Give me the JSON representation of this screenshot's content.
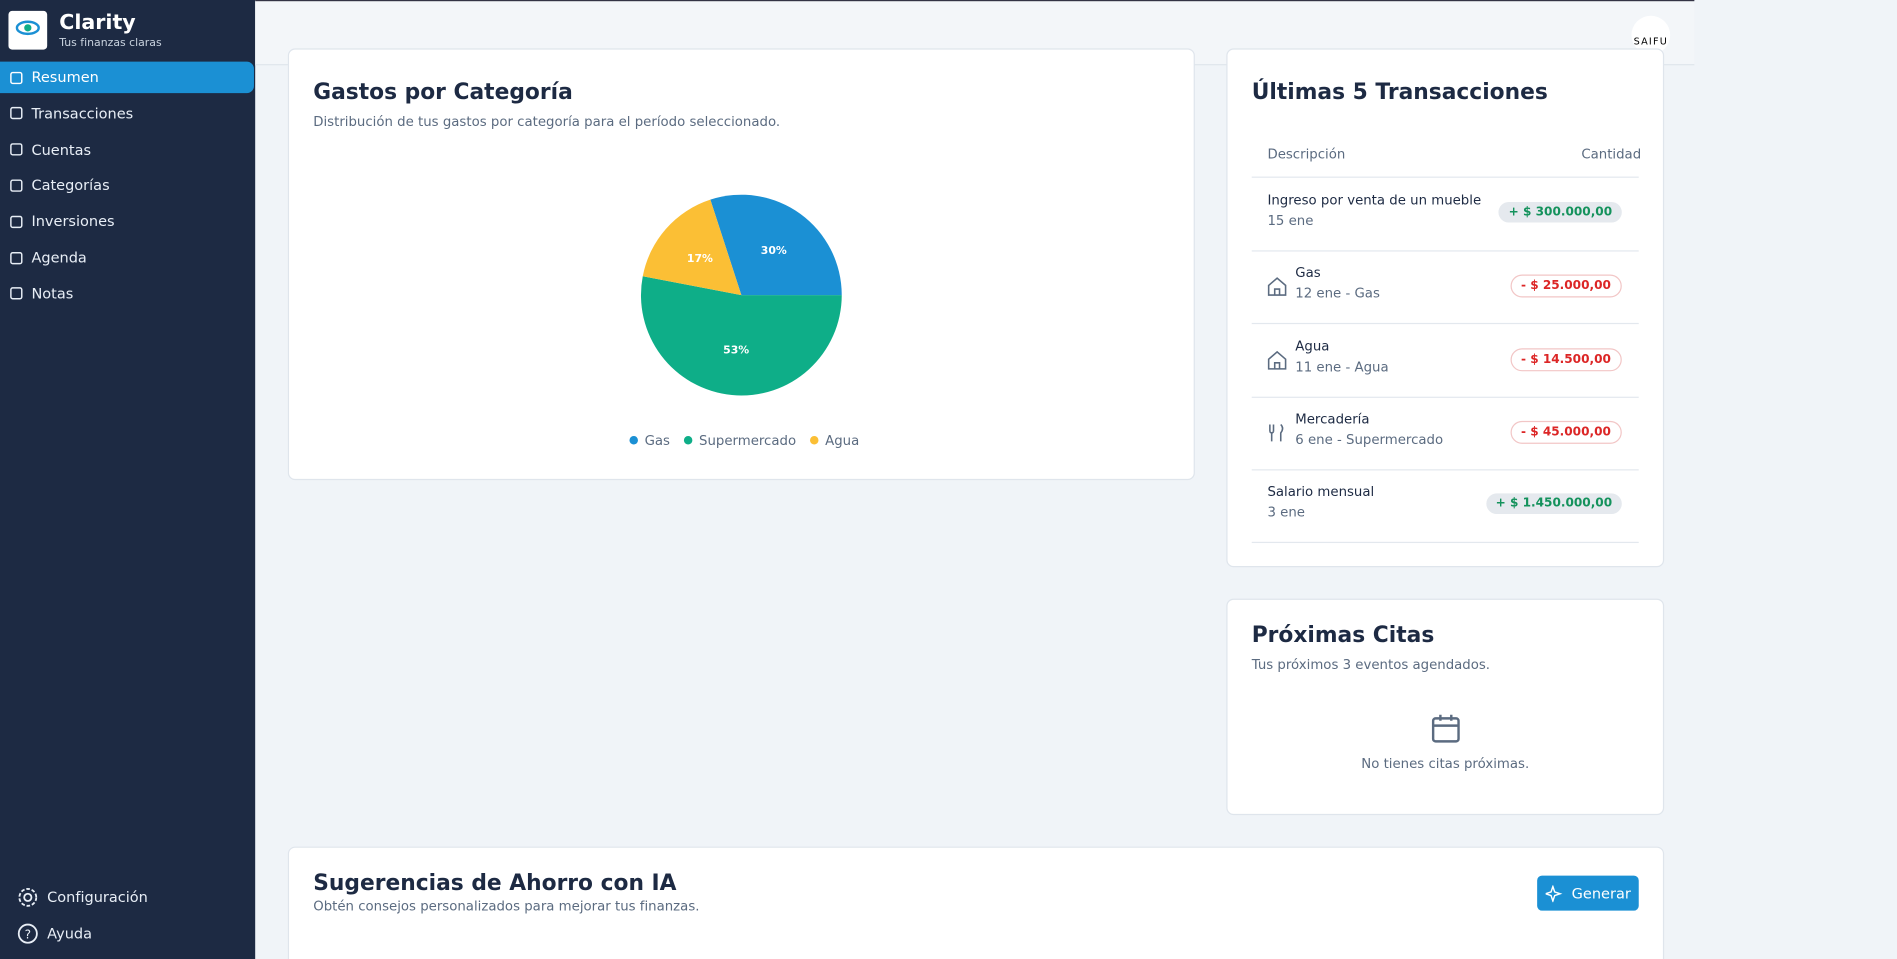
{
  "sidebar": {
    "app_name": "Clarity",
    "tagline": "Tus finanzas claras",
    "nav": [
      "Resumen",
      "Transacciones",
      "Cuentas",
      "Categorías",
      "Inversiones",
      "Agenda",
      "Notas"
    ],
    "footer": [
      "Configuración",
      "Ayuda"
    ]
  },
  "header": {
    "avatar": "SAIFU"
  },
  "expenses": {
    "type": "pie",
    "title": "Gastos por Categoría",
    "subtitle": "Distribución de tus gastos por categoría para el período seleccionado.",
    "categories": [
      "Gas",
      "Supermercado",
      "Agua"
    ],
    "values": [
      30,
      53,
      17
    ],
    "value_labels": [
      "30%",
      "53%",
      "17%"
    ],
    "colors": [
      "#1b90d4",
      "#0eae88",
      "#fbbf35"
    ]
  },
  "transactions": {
    "title": "Últimas 5 Transacciones",
    "columns": [
      "Descripción",
      "Cantidad"
    ],
    "rows": [
      {
        "description": "Ingreso por venta de un mueble",
        "detail": "15 ene",
        "amount": "+ $ 300.000,00",
        "kind": "income",
        "icon": "none"
      },
      {
        "description": "Gas",
        "detail": "12 ene - Gas",
        "amount": "- $ 25.000,00",
        "kind": "expense",
        "icon": "home"
      },
      {
        "description": "Agua",
        "detail": "11 ene - Agua",
        "amount": "- $ 14.500,00",
        "kind": "expense",
        "icon": "home"
      },
      {
        "description": "Mercadería",
        "detail": "6 ene - Supermercado",
        "amount": "- $ 45.000,00",
        "kind": "expense",
        "icon": "food"
      },
      {
        "description": "Salario mensual",
        "detail": "3 ene",
        "amount": "+ $ 1.450.000,00",
        "kind": "income",
        "icon": "none"
      }
    ]
  },
  "appointments": {
    "title": "Próximas Citas",
    "subtitle": "Tus próximos 3 eventos agendados.",
    "empty": "No tienes citas próximas."
  },
  "suggestions": {
    "title": "Sugerencias de Ahorro con IA",
    "subtitle": "Obtén consejos personalizados para mejorar tus finanzas.",
    "button": "Generar"
  }
}
